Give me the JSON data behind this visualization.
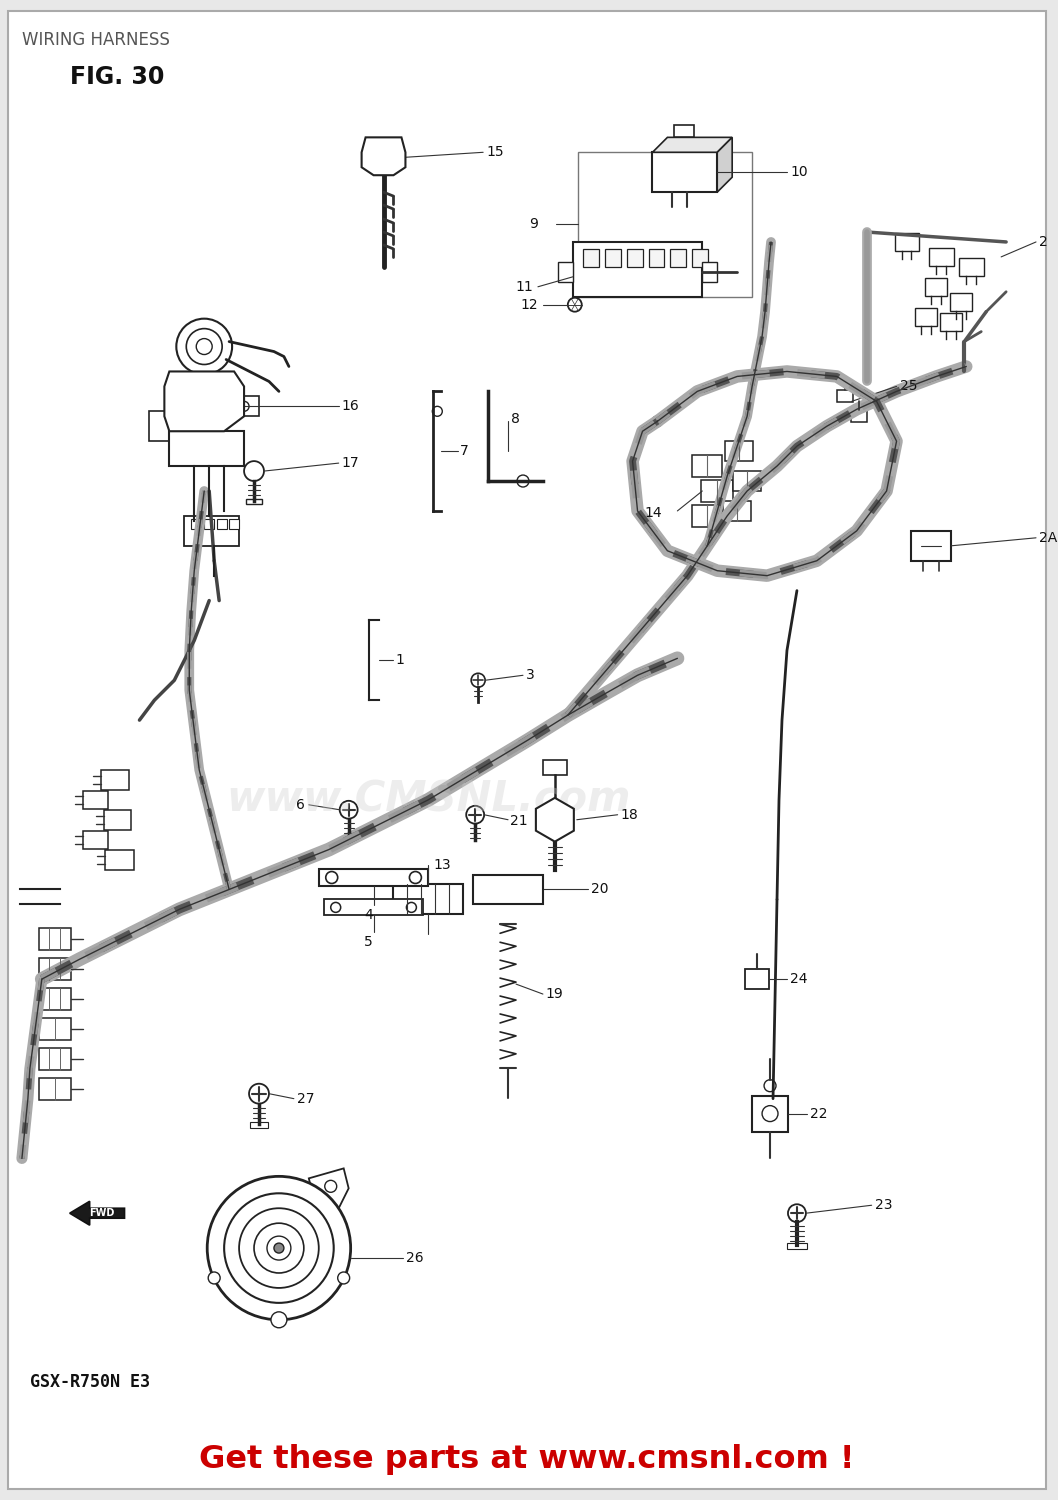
{
  "title": "WIRING HARNESS",
  "fig_label": "FIG. 30",
  "model": "GSX-R750N E3",
  "footer": "Get these parts at www.cmsnl.com !",
  "footer_color": "#cc0000",
  "bg_color": "#e8e8e8",
  "border_color": "#999999",
  "inner_bg": "#f0f0f0",
  "title_color": "#555555",
  "fig_label_color": "#111111",
  "watermark_text": "www.CMSNL.com",
  "watermark_color": "#bbbbbb",
  "draw_color": "#222222",
  "wire_color": "#333333"
}
